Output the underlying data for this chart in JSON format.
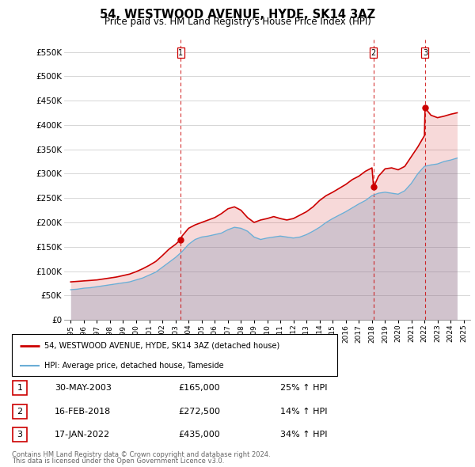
{
  "title": "54, WESTWOOD AVENUE, HYDE, SK14 3AZ",
  "subtitle": "Price paid vs. HM Land Registry's House Price Index (HPI)",
  "ylabel_ticks": [
    "£0",
    "£50K",
    "£100K",
    "£150K",
    "£200K",
    "£250K",
    "£300K",
    "£350K",
    "£400K",
    "£450K",
    "£500K",
    "£550K"
  ],
  "ytick_values": [
    0,
    50000,
    100000,
    150000,
    200000,
    250000,
    300000,
    350000,
    400000,
    450000,
    500000,
    550000
  ],
  "ylim": [
    0,
    575000
  ],
  "xlim_start": 1994.5,
  "xlim_end": 2025.5,
  "legend_line1": "54, WESTWOOD AVENUE, HYDE, SK14 3AZ (detached house)",
  "legend_line2": "HPI: Average price, detached house, Tameside",
  "red_color": "#cc0000",
  "blue_color": "#6baed6",
  "footnote1": "Contains HM Land Registry data © Crown copyright and database right 2024.",
  "footnote2": "This data is licensed under the Open Government Licence v3.0.",
  "transactions": [
    {
      "label": "1",
      "date": "30-MAY-2003",
      "price": "£165,000",
      "hpi": "25% ↑ HPI",
      "year": 2003.41,
      "price_val": 165000
    },
    {
      "label": "2",
      "date": "16-FEB-2018",
      "price": "£272,500",
      "hpi": "14% ↑ HPI",
      "year": 2018.12,
      "price_val": 272500
    },
    {
      "label": "3",
      "date": "17-JAN-2022",
      "price": "£435,000",
      "hpi": "34% ↑ HPI",
      "year": 2022.05,
      "price_val": 435000
    }
  ],
  "hpi_x": [
    1995,
    1995.5,
    1996,
    1996.5,
    1997,
    1997.5,
    1998,
    1998.5,
    1999,
    1999.5,
    2000,
    2000.5,
    2001,
    2001.5,
    2002,
    2002.5,
    2003,
    2003.5,
    2004,
    2004.5,
    2005,
    2005.5,
    2006,
    2006.5,
    2007,
    2007.5,
    2008,
    2008.5,
    2009,
    2009.5,
    2010,
    2010.5,
    2011,
    2011.5,
    2012,
    2012.5,
    2013,
    2013.5,
    2014,
    2014.5,
    2015,
    2015.5,
    2016,
    2016.5,
    2017,
    2017.5,
    2018,
    2018.5,
    2019,
    2019.5,
    2020,
    2020.5,
    2021,
    2021.5,
    2022,
    2022.5,
    2023,
    2023.5,
    2024,
    2024.5
  ],
  "hpi_y": [
    62000,
    63000,
    65000,
    66000,
    68000,
    70000,
    72000,
    74000,
    76000,
    78000,
    82000,
    86000,
    92000,
    98000,
    108000,
    118000,
    128000,
    140000,
    155000,
    165000,
    170000,
    172000,
    175000,
    178000,
    185000,
    190000,
    188000,
    182000,
    170000,
    165000,
    168000,
    170000,
    172000,
    170000,
    168000,
    170000,
    175000,
    182000,
    190000,
    200000,
    208000,
    215000,
    222000,
    230000,
    238000,
    245000,
    255000,
    260000,
    262000,
    260000,
    258000,
    265000,
    280000,
    300000,
    315000,
    318000,
    320000,
    325000,
    328000,
    332000
  ],
  "red_x": [
    1995,
    1995.5,
    1996,
    1996.5,
    1997,
    1997.5,
    1998,
    1998.5,
    1999,
    1999.5,
    2000,
    2000.5,
    2001,
    2001.5,
    2002,
    2002.5,
    2003,
    2003.41,
    2003.5,
    2004,
    2004.5,
    2005,
    2005.5,
    2006,
    2006.5,
    2007,
    2007.5,
    2008,
    2008.5,
    2009,
    2009.5,
    2010,
    2010.5,
    2011,
    2011.5,
    2012,
    2012.5,
    2013,
    2013.5,
    2014,
    2014.5,
    2015,
    2015.5,
    2016,
    2016.5,
    2017,
    2017.5,
    2018,
    2018.12,
    2018.5,
    2019,
    2019.5,
    2020,
    2020.5,
    2021,
    2021.5,
    2022,
    2022.05,
    2022.5,
    2023,
    2023.5,
    2024,
    2024.5
  ],
  "red_y": [
    78000,
    79000,
    80000,
    81000,
    82000,
    84000,
    86000,
    88000,
    91000,
    94000,
    99000,
    105000,
    112000,
    120000,
    132000,
    145000,
    155000,
    165000,
    172000,
    188000,
    195000,
    200000,
    205000,
    210000,
    218000,
    228000,
    232000,
    225000,
    210000,
    200000,
    205000,
    208000,
    212000,
    208000,
    205000,
    208000,
    215000,
    222000,
    232000,
    245000,
    255000,
    262000,
    270000,
    278000,
    288000,
    295000,
    305000,
    312000,
    272500,
    295000,
    310000,
    312000,
    308000,
    315000,
    335000,
    355000,
    378000,
    435000,
    420000,
    415000,
    418000,
    422000,
    425000
  ]
}
